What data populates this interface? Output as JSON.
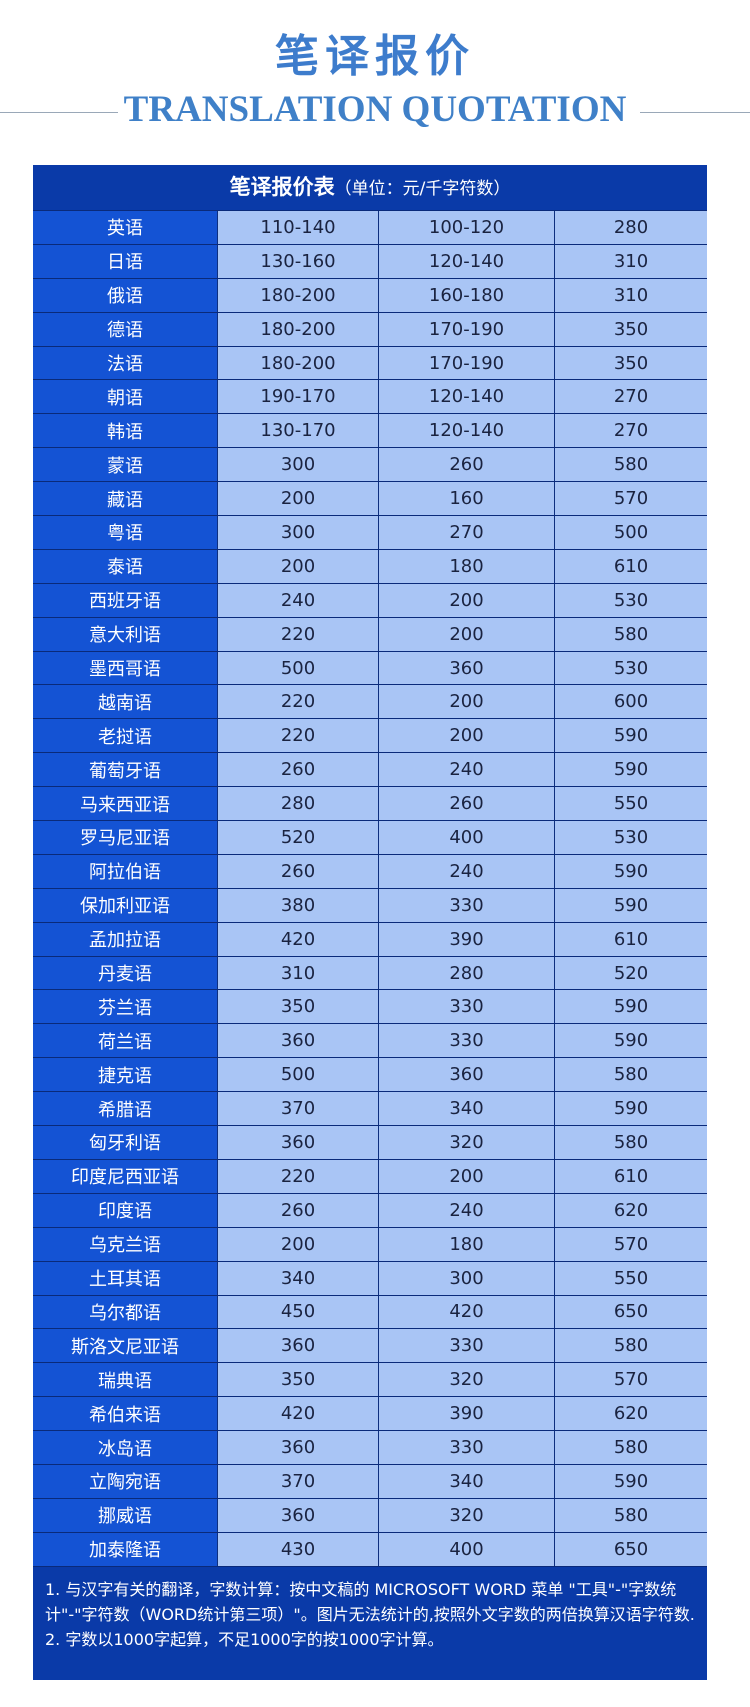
{
  "title": "笔译报价",
  "subtitle": "TRANSLATION QUOTATION",
  "table": {
    "header": "笔译报价表",
    "unit": "（单位：元/千字符数）",
    "rows": [
      [
        "英语",
        "110-140",
        "100-120",
        "280"
      ],
      [
        "日语",
        "130-160",
        "120-140",
        "310"
      ],
      [
        "俄语",
        "180-200",
        "160-180",
        "310"
      ],
      [
        "德语",
        "180-200",
        "170-190",
        "350"
      ],
      [
        "法语",
        "180-200",
        "170-190",
        "350"
      ],
      [
        "朝语",
        "190-170",
        "120-140",
        "270"
      ],
      [
        "韩语",
        "130-170",
        "120-140",
        "270"
      ],
      [
        "蒙语",
        "300",
        "260",
        "580"
      ],
      [
        "藏语",
        "200",
        "160",
        "570"
      ],
      [
        "粤语",
        "300",
        "270",
        "500"
      ],
      [
        "泰语",
        "200",
        "180",
        "610"
      ],
      [
        "西班牙语",
        "240",
        "200",
        "530"
      ],
      [
        "意大利语",
        "220",
        "200",
        "580"
      ],
      [
        "墨西哥语",
        "500",
        "360",
        "530"
      ],
      [
        "越南语",
        "220",
        "200",
        "600"
      ],
      [
        "老挝语",
        "220",
        "200",
        "590"
      ],
      [
        "葡萄牙语",
        "260",
        "240",
        "590"
      ],
      [
        "马来西亚语",
        "280",
        "260",
        "550"
      ],
      [
        "罗马尼亚语",
        "520",
        "400",
        "530"
      ],
      [
        "阿拉伯语",
        "260",
        "240",
        "590"
      ],
      [
        "保加利亚语",
        "380",
        "330",
        "590"
      ],
      [
        "孟加拉语",
        "420",
        "390",
        "610"
      ],
      [
        "丹麦语",
        "310",
        "280",
        "520"
      ],
      [
        "芬兰语",
        "350",
        "330",
        "590"
      ],
      [
        "荷兰语",
        "360",
        "330",
        "590"
      ],
      [
        "捷克语",
        "500",
        "360",
        "580"
      ],
      [
        "希腊语",
        "370",
        "340",
        "590"
      ],
      [
        "匈牙利语",
        "360",
        "320",
        "580"
      ],
      [
        "印度尼西亚语",
        "220",
        "200",
        "610"
      ],
      [
        "印度语",
        "260",
        "240",
        "620"
      ],
      [
        "乌克兰语",
        "200",
        "180",
        "570"
      ],
      [
        "土耳其语",
        "340",
        "300",
        "550"
      ],
      [
        "乌尔都语",
        "450",
        "420",
        "650"
      ],
      [
        "斯洛文尼亚语",
        "360",
        "330",
        "580"
      ],
      [
        "瑞典语",
        "350",
        "320",
        "570"
      ],
      [
        "希伯来语",
        "420",
        "390",
        "620"
      ],
      [
        "冰岛语",
        "360",
        "330",
        "580"
      ],
      [
        "立陶宛语",
        "370",
        "340",
        "590"
      ],
      [
        "挪威语",
        "360",
        "320",
        "580"
      ],
      [
        "加泰隆语",
        "430",
        "400",
        "650"
      ]
    ]
  },
  "notes": [
    "1. 与汉字有关的翻译，字数计算：按中文稿的 MICROSOFT WORD 菜单 \"工具\"-\"字数统计\"-\"字符数（WORD统计第三项）\"。图片无法统计的,按照外文字数的两倍换算汉语字符数.",
    "2. 字数以1000字起算，不足1000字的按1000字计算。"
  ],
  "colors": {
    "title": "#3d7ccc",
    "header_bg": "#0a3aa8",
    "lang_bg": "#1453d4",
    "cell_bg": "#a9c5f5"
  }
}
